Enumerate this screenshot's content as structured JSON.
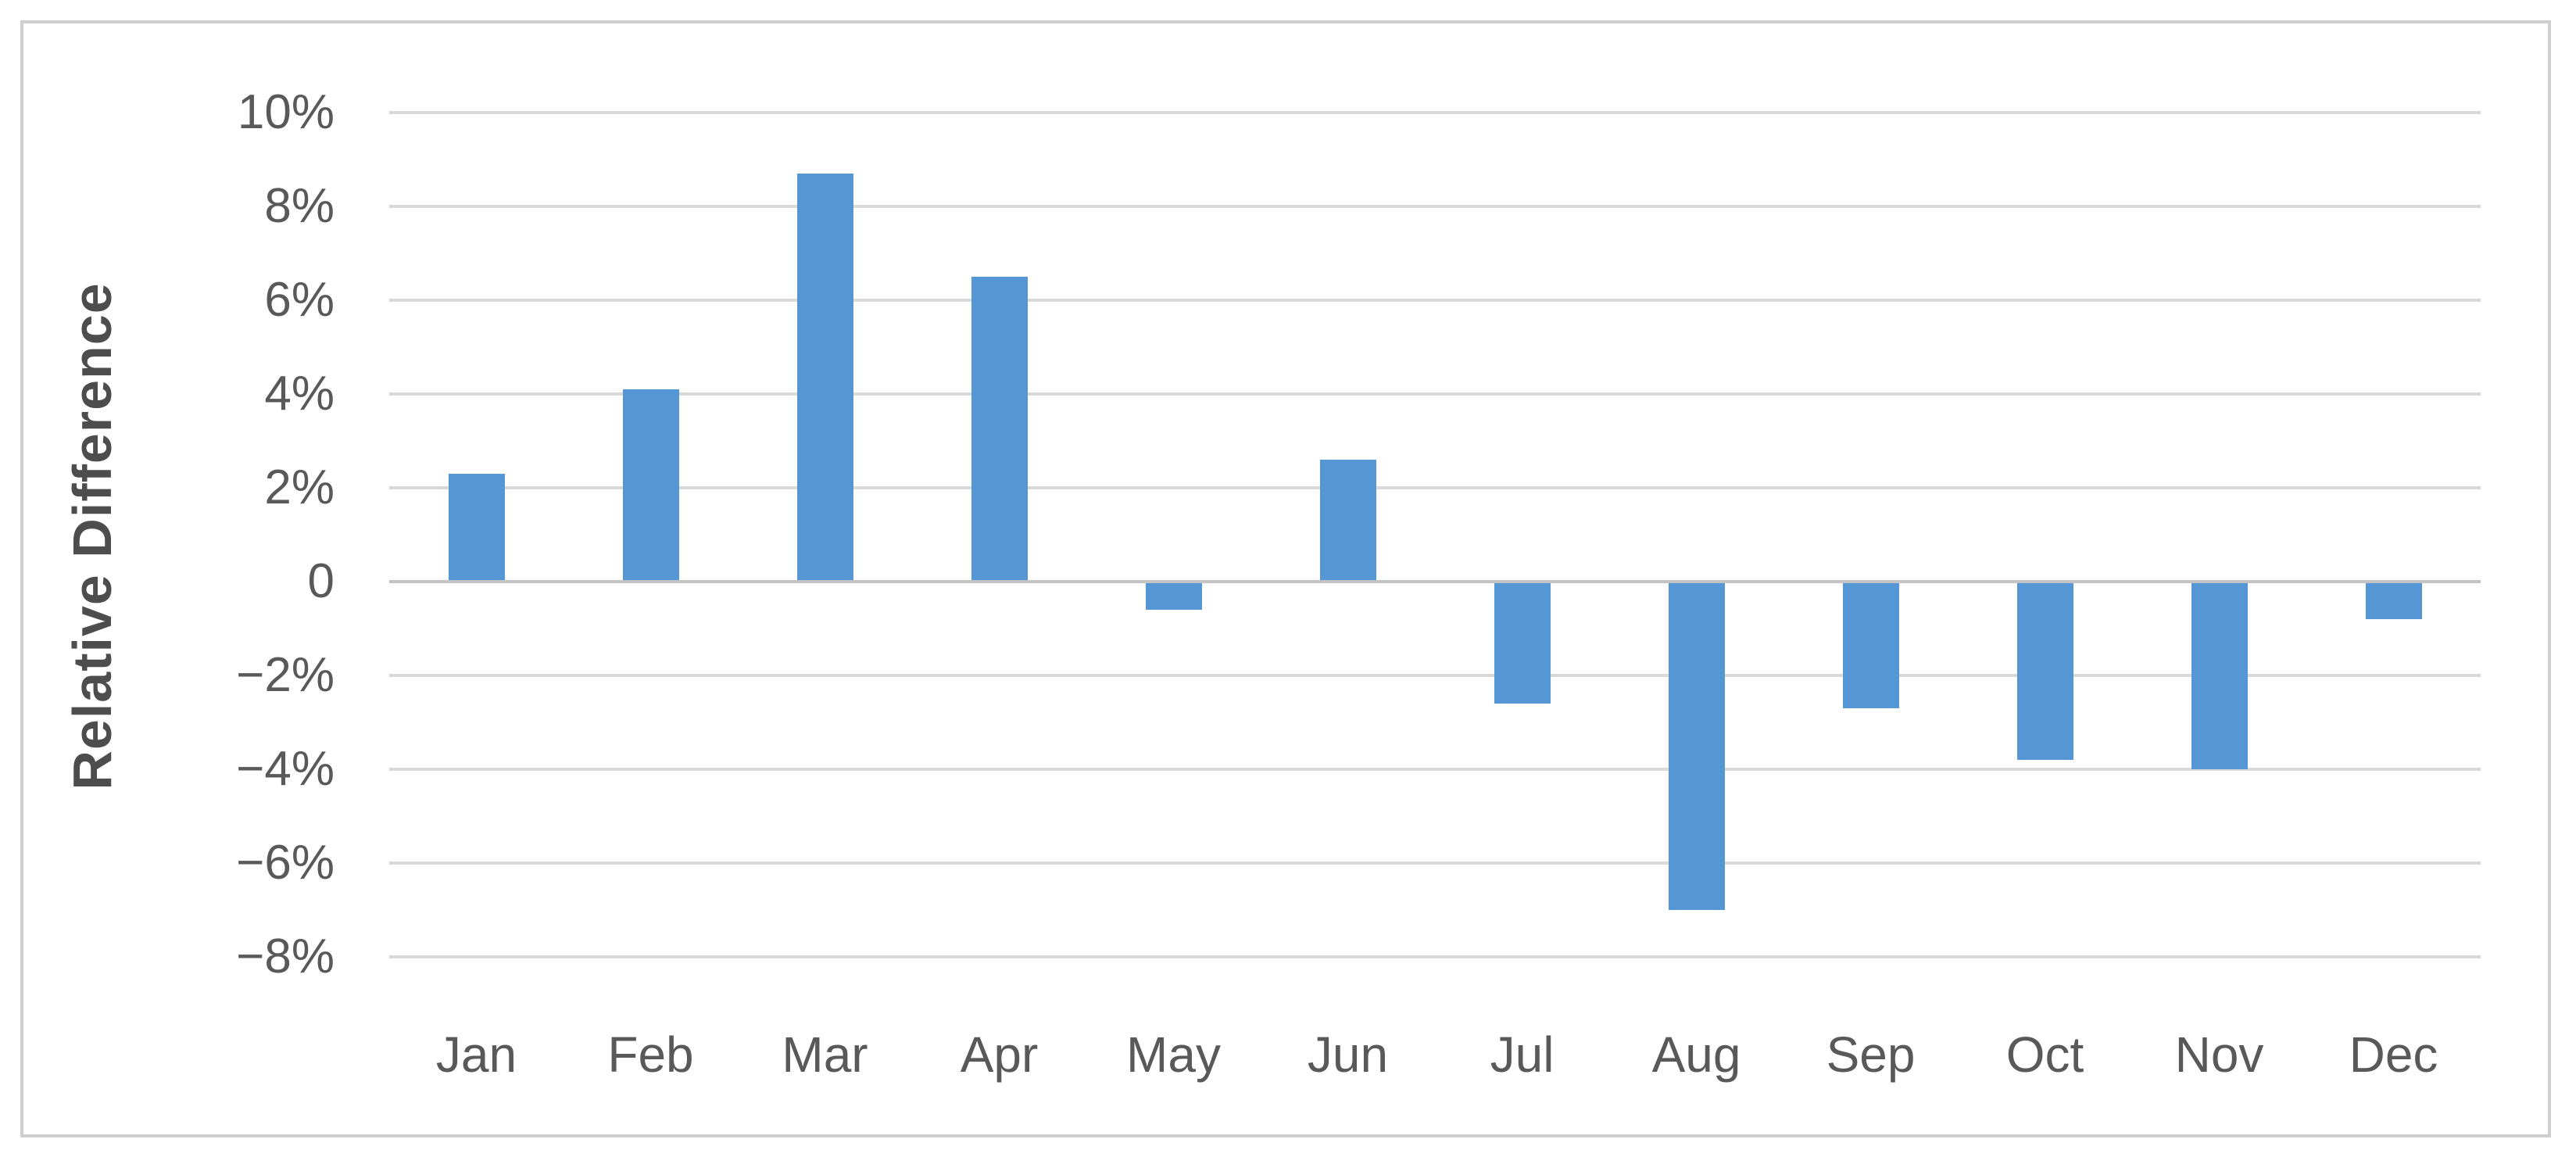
{
  "chart_data": {
    "type": "bar",
    "title": "",
    "categories": [
      "Jan",
      "Feb",
      "Mar",
      "Apr",
      "May",
      "Jun",
      "Jul",
      "Aug",
      "Sep",
      "Oct",
      "Nov",
      "Dec"
    ],
    "values": [
      2.3,
      4.1,
      8.7,
      6.5,
      -0.6,
      2.6,
      -2.6,
      -7.0,
      -2.7,
      -3.8,
      -4.0,
      -0.8
    ],
    "series_name": "Relative Difference",
    "xlabel": "",
    "ylabel": "Relative Difference",
    "ylim": [
      -8,
      10
    ],
    "ytick_step": 2,
    "ytick_values": [
      10,
      8,
      6,
      4,
      2,
      0,
      -2,
      -4,
      -6,
      -8
    ],
    "ytick_labels": [
      "10%",
      "8%",
      "6%",
      "4%",
      "2%",
      "0",
      "−2%",
      "−4%",
      "−6%",
      "−8%"
    ],
    "grid": "horizontal",
    "legend": "none",
    "bar_color": "#5596d5",
    "gridline_color": "#d9d9d9",
    "zero_axis_color": "#c3c3c3",
    "label_color": "#595959",
    "axis_title_color": "#4d4d4d",
    "frame_border_color": "#cfcfcf",
    "background_color": "#ffffff"
  }
}
